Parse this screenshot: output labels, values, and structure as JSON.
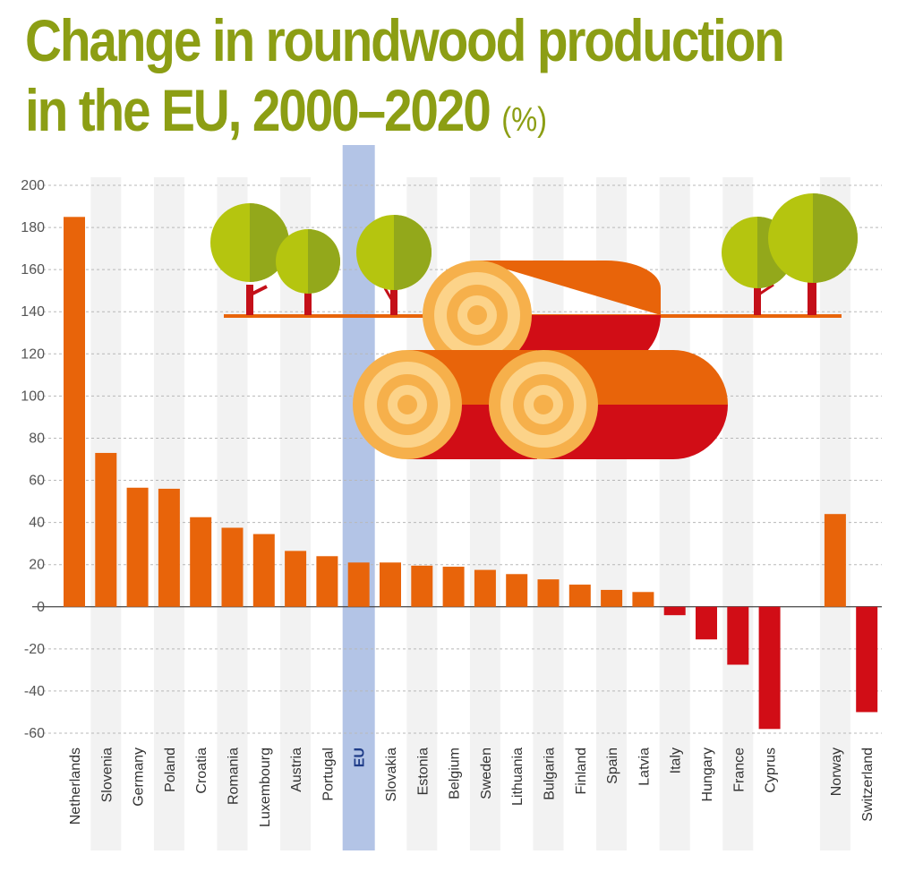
{
  "header": {
    "title_line1": "Change in roundwood production",
    "title_line2": "in the EU, 2000–2020",
    "unit": "(%)"
  },
  "colors": {
    "title": "#8c9e14",
    "positive": "#e8640a",
    "negative": "#d10d16",
    "eu_highlight": "#b3c4e6",
    "stripe": "#f2f2f2",
    "leaf": "#a4b81a",
    "trunk": "#c41019"
  },
  "chart_data": {
    "type": "bar",
    "title": "Change in roundwood production in the EU, 2000–2020 (%)",
    "xlabel": "",
    "ylabel": "%",
    "ylim": [
      -60,
      200
    ],
    "yticks": [
      200,
      180,
      160,
      140,
      120,
      100,
      80,
      60,
      40,
      20,
      0,
      -20,
      -40,
      -60
    ],
    "grid": true,
    "highlight": "EU",
    "categories": [
      "Netherlands",
      "Slovenia",
      "Germany",
      "Poland",
      "Croatia",
      "Romania",
      "Luxembourg",
      "Austria",
      "Portugal",
      "EU",
      "Slovakia",
      "Estonia",
      "Belgium",
      "Sweden",
      "Lithuania",
      "Bulgaria",
      "Finland",
      "Spain",
      "Latvia",
      "Italy",
      "Hungary",
      "France",
      "Cyprus",
      "Norway",
      "Switzerland"
    ],
    "values": [
      185,
      73,
      56.5,
      56,
      42.5,
      37.5,
      34.5,
      26.5,
      24,
      21,
      21,
      19.5,
      19,
      17.5,
      15.5,
      13,
      10.5,
      8,
      7,
      -4,
      -15.5,
      -27.5,
      -58,
      44,
      -50
    ]
  }
}
